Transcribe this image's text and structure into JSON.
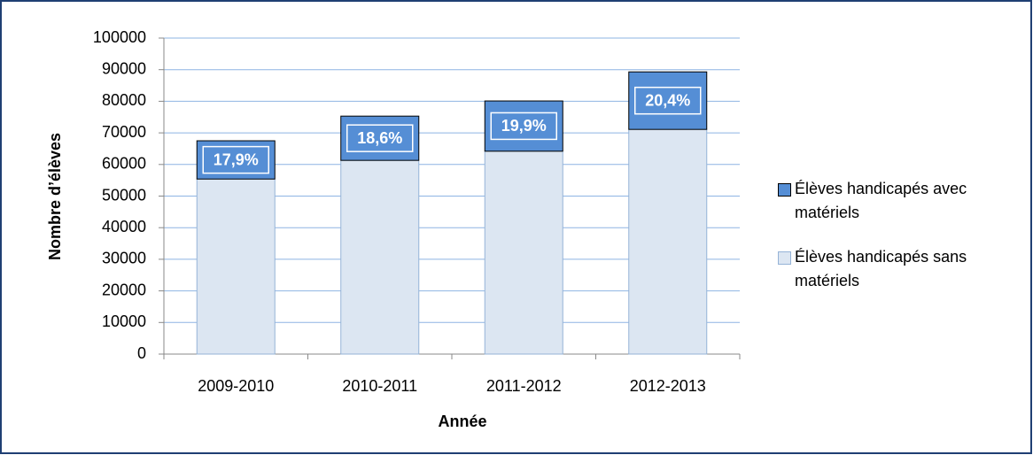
{
  "chart_data": {
    "type": "stacked_bar",
    "categories": [
      "2009-2010",
      "2010-2011",
      "2011-2012",
      "2012-2013"
    ],
    "series": [
      {
        "name": "Élèves handicapés sans matériels",
        "color": "#dce6f2",
        "values": [
          55400,
          61300,
          64200,
          71100
        ]
      },
      {
        "name": "Élèves handicapés avec matériels",
        "color": "#558ed5",
        "values": [
          12100,
          14000,
          15900,
          18200
        ]
      }
    ],
    "annotations": [
      "17,9%",
      "18,6%",
      "19,9%",
      "20,4%"
    ],
    "xlabel": "Année",
    "ylabel": "Nombre d’élèves",
    "ylim": [
      0,
      100000
    ],
    "yticks": [
      0,
      10000,
      20000,
      30000,
      40000,
      50000,
      60000,
      70000,
      80000,
      90000,
      100000
    ],
    "grid": true,
    "legend": "right"
  }
}
